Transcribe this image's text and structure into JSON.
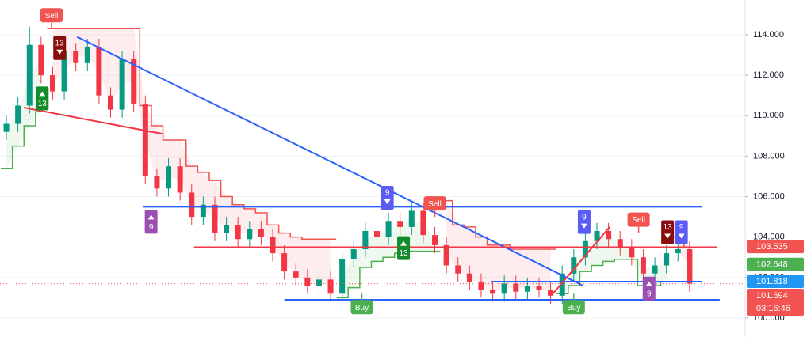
{
  "chart_data": {
    "type": "candlestick",
    "open": [
      109.2,
      109.6,
      110.5,
      113.5,
      112.0,
      111.2,
      113.2,
      112.6,
      113.4,
      111.0,
      110.3,
      112.8,
      110.6,
      107.0,
      106.4,
      107.5,
      106.2,
      105.0,
      105.6,
      104.2,
      104.6,
      103.9,
      104.4,
      104.0,
      103.2,
      102.3,
      102.0,
      101.6,
      101.9,
      101.2,
      102.9,
      103.4,
      104.3,
      104.0,
      104.8,
      104.5,
      105.3,
      104.1,
      103.6,
      102.6,
      102.2,
      101.8,
      101.4,
      101.2,
      101.7,
      101.3,
      101.6,
      101.4,
      101.1,
      102.2,
      103.0,
      103.8,
      104.3,
      103.9,
      103.5,
      103.0,
      102.2,
      102.6,
      103.2,
      103.4
    ],
    "high": [
      110.0,
      110.9,
      114.4,
      113.9,
      112.4,
      113.6,
      113.6,
      113.8,
      113.8,
      111.4,
      113.2,
      113.2,
      111.0,
      107.4,
      107.9,
      107.9,
      106.6,
      106.0,
      106.0,
      105.0,
      105.0,
      104.8,
      104.8,
      104.4,
      103.6,
      102.7,
      102.4,
      102.3,
      102.3,
      103.3,
      103.8,
      104.7,
      104.7,
      105.2,
      105.2,
      105.7,
      105.7,
      104.5,
      104.0,
      103.0,
      102.6,
      102.2,
      101.8,
      102.1,
      102.1,
      102.0,
      102.0,
      101.8,
      102.6,
      103.4,
      104.2,
      104.7,
      104.7,
      104.3,
      103.9,
      103.4,
      103.0,
      103.6,
      103.8,
      103.8
    ],
    "low": [
      108.8,
      109.2,
      110.1,
      111.6,
      110.8,
      110.8,
      112.2,
      112.2,
      110.6,
      109.9,
      109.9,
      110.2,
      106.6,
      106.0,
      106.0,
      105.8,
      104.6,
      104.6,
      103.8,
      103.8,
      103.5,
      103.5,
      103.6,
      102.8,
      101.9,
      101.6,
      101.2,
      101.2,
      100.8,
      100.8,
      102.5,
      103.0,
      103.6,
      103.6,
      104.1,
      104.1,
      103.7,
      103.2,
      102.2,
      101.8,
      101.4,
      101.0,
      100.8,
      100.8,
      100.9,
      100.9,
      101.0,
      100.7,
      100.7,
      101.8,
      102.6,
      103.4,
      103.5,
      103.1,
      102.6,
      101.8,
      101.8,
      102.2,
      102.8,
      101.3
    ],
    "close": [
      109.6,
      110.5,
      113.5,
      112.0,
      111.2,
      113.2,
      112.6,
      113.4,
      111.0,
      110.3,
      112.8,
      110.6,
      107.0,
      106.4,
      107.5,
      106.2,
      105.0,
      105.6,
      104.2,
      104.6,
      103.9,
      104.4,
      104.0,
      103.2,
      102.3,
      102.0,
      101.6,
      101.9,
      101.2,
      102.9,
      103.4,
      104.3,
      104.0,
      104.8,
      104.5,
      105.3,
      104.1,
      103.6,
      102.6,
      102.2,
      101.8,
      101.4,
      101.2,
      101.7,
      101.3,
      101.6,
      101.4,
      101.1,
      102.2,
      103.0,
      103.8,
      104.3,
      103.9,
      103.5,
      103.0,
      102.2,
      102.6,
      103.2,
      103.4,
      101.7
    ],
    "up_color": "#089981",
    "down_color": "#f23645",
    "upper_band": {
      "color": "#f05350",
      "values": [
        null,
        null,
        null,
        null,
        114.3,
        114.3,
        114.3,
        114.3,
        114.3,
        114.3,
        114.3,
        114.3,
        110.5,
        109.5,
        108.8,
        108.8,
        107.5,
        107.2,
        106.8,
        106.0,
        105.6,
        105.4,
        105.2,
        104.6,
        104.2,
        104.0,
        103.9,
        103.9,
        103.9,
        null,
        null,
        null,
        null,
        null,
        null,
        null,
        null,
        null,
        105.8,
        104.6,
        104.5,
        104.0,
        103.6,
        103.6,
        103.4,
        103.4,
        103.4,
        103.4,
        null,
        null,
        null,
        null,
        null,
        null,
        null,
        null,
        null,
        null,
        104.0,
        103.5
      ]
    },
    "lower_band": {
      "color": "#4caf50",
      "values": [
        107.4,
        108.5,
        109.5,
        110.2,
        null,
        null,
        null,
        null,
        null,
        null,
        null,
        null,
        null,
        null,
        null,
        null,
        null,
        null,
        null,
        null,
        null,
        null,
        null,
        null,
        null,
        null,
        null,
        null,
        null,
        101.0,
        101.5,
        102.5,
        102.8,
        103.0,
        103.2,
        103.3,
        103.3,
        103.3,
        null,
        null,
        null,
        null,
        null,
        null,
        null,
        null,
        null,
        null,
        101.2,
        101.6,
        102.3,
        102.6,
        102.8,
        102.9,
        102.9,
        101.6,
        101.6,
        101.8,
        null,
        null
      ]
    },
    "drawings": [
      {
        "color": "#f23645",
        "x": [
          1.5,
          13.5
        ],
        "y": [
          110.4,
          109.1
        ]
      },
      {
        "color": "#2962ff",
        "x": [
          6.1,
          49.8
        ],
        "y": [
          113.9,
          101.6
        ]
      },
      {
        "color": "#2962ff",
        "x": [
          11.8,
          60.1
        ],
        "y": [
          105.5,
          105.5
        ]
      },
      {
        "color": "#f23645",
        "x": [
          16.2,
          61.4
        ],
        "y": [
          103.5,
          103.5
        ]
      },
      {
        "color": "#2962ff",
        "x": [
          41.9,
          60.1
        ],
        "y": [
          101.8,
          101.8
        ]
      },
      {
        "color": "#2962ff",
        "x": [
          24.0,
          61.6
        ],
        "y": [
          100.9,
          100.9
        ]
      },
      {
        "color": "#f23645",
        "x": [
          47.2,
          52.1
        ],
        "y": [
          101.2,
          104.5
        ]
      }
    ],
    "signals": [
      {
        "label": "Sell",
        "x": 3.9,
        "y": 114.3,
        "side": "above",
        "color": "#f05350"
      },
      {
        "label": "13",
        "x": 4.6,
        "y": 112.6,
        "side": "above",
        "color": "#880e0e"
      },
      {
        "label": "13",
        "x": 3.1,
        "y": 111.6,
        "side": "below",
        "color": "#138b2b"
      },
      {
        "label": "9",
        "x": 12.5,
        "y": 105.5,
        "side": "below",
        "color": "#9c4fb0"
      },
      {
        "label": "9",
        "x": 32.9,
        "y": 105.2,
        "side": "above",
        "color": "#5b5bf5"
      },
      {
        "label": "Sell",
        "x": 37.0,
        "y": 105.0,
        "side": "above",
        "color": "#f05350"
      },
      {
        "label": "13",
        "x": 34.3,
        "y": 104.2,
        "side": "below",
        "color": "#138b2b"
      },
      {
        "label": "Buy",
        "x": 30.7,
        "y": 101.2,
        "side": "below",
        "color": "#4caf50"
      },
      {
        "label": "Buy",
        "x": 49.0,
        "y": 101.2,
        "side": "below",
        "color": "#4caf50"
      },
      {
        "label": "9",
        "x": 49.9,
        "y": 104.0,
        "side": "above",
        "color": "#5b5bf5"
      },
      {
        "label": "Sell",
        "x": 54.6,
        "y": 104.2,
        "side": "above",
        "color": "#f05350"
      },
      {
        "label": "13",
        "x": 57.1,
        "y": 103.5,
        "side": "above",
        "color": "#880e0e"
      },
      {
        "label": "9",
        "x": 58.3,
        "y": 103.5,
        "side": "above",
        "color": "#5b5bf5"
      },
      {
        "label": "9",
        "x": 55.5,
        "y": 102.2,
        "side": "below",
        "color": "#9c4fb0"
      }
    ],
    "price_tags": [
      {
        "label": "103.535",
        "value": 103.535,
        "color": "#f05350"
      },
      {
        "label": "102.648",
        "value": 102.648,
        "color": "#4caf50"
      },
      {
        "label": "101.818",
        "value": 101.818,
        "color": "#2196f3"
      },
      {
        "label": "101.694",
        "value": 101.694,
        "color": "#f05350",
        "countdown": "03:16:46"
      }
    ],
    "xlim": [
      -0.55,
      63.8
    ],
    "ylim": [
      99.06,
      115.72
    ],
    "yticks": [
      {
        "value": 100,
        "label": "100.000"
      },
      {
        "value": 102,
        "label": "102.000"
      },
      {
        "value": 104,
        "label": "104.000"
      },
      {
        "value": 106,
        "label": "106.000"
      },
      {
        "value": 108,
        "label": "108.000"
      },
      {
        "value": 110,
        "label": "110.000"
      },
      {
        "value": 112,
        "label": "112.000"
      },
      {
        "value": 114,
        "label": "114.000"
      }
    ],
    "grid": true
  }
}
